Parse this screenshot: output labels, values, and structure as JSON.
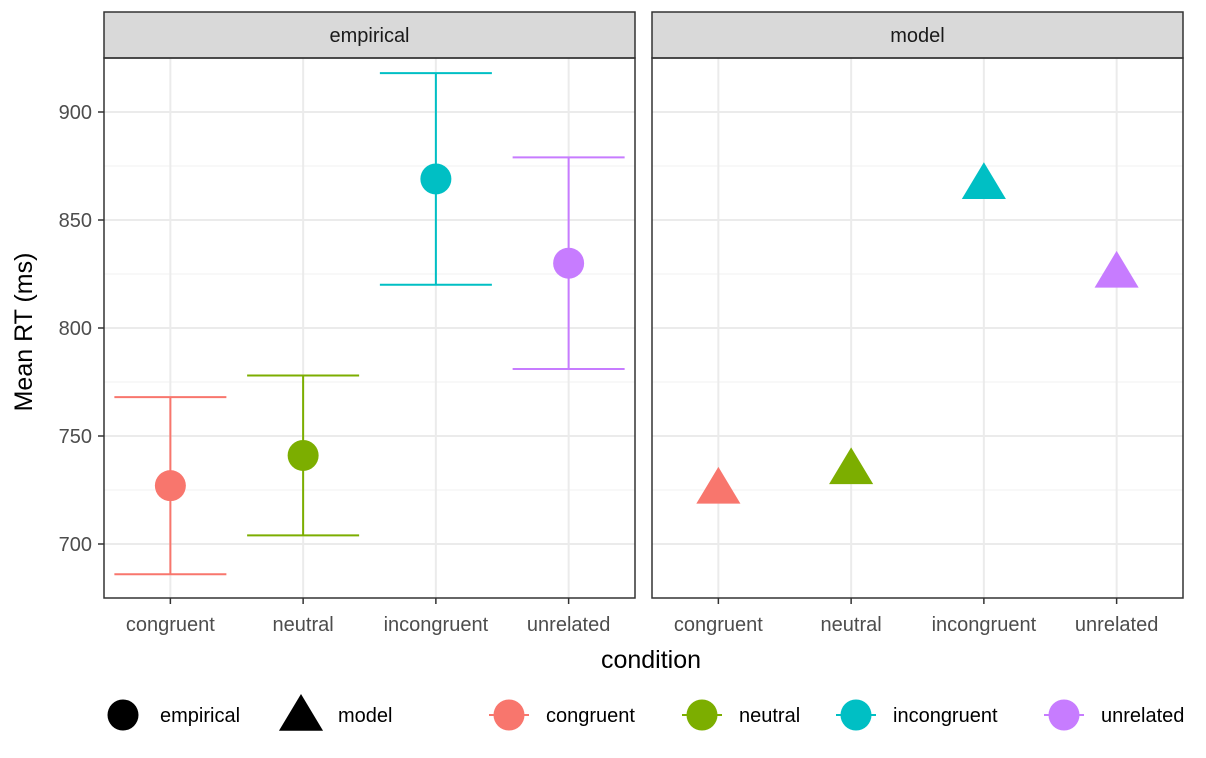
{
  "chart_data": {
    "type": "scatter",
    "xlabel": "condition",
    "ylabel": "Mean RT (ms)",
    "categories": [
      "congruent",
      "neutral",
      "incongruent",
      "unrelated"
    ],
    "ylim": [
      675,
      925
    ],
    "yticks": [
      700,
      750,
      800,
      850,
      900
    ],
    "grid": true,
    "colors": {
      "congruent": "#F8766D",
      "neutral": "#7CAE00",
      "incongruent": "#00BFC4",
      "unrelated": "#C77CFF"
    },
    "panels": [
      {
        "title": "empirical",
        "marker": "circle",
        "points": [
          {
            "category": "congruent",
            "mean": 727,
            "lower": 686,
            "upper": 768
          },
          {
            "category": "neutral",
            "mean": 741,
            "lower": 704,
            "upper": 778
          },
          {
            "category": "incongruent",
            "mean": 869,
            "lower": 820,
            "upper": 918
          },
          {
            "category": "unrelated",
            "mean": 830,
            "lower": 781,
            "upper": 879
          }
        ]
      },
      {
        "title": "model",
        "marker": "triangle",
        "points": [
          {
            "category": "congruent",
            "mean": 726
          },
          {
            "category": "neutral",
            "mean": 735
          },
          {
            "category": "incongruent",
            "mean": 867
          },
          {
            "category": "unrelated",
            "mean": 826
          }
        ]
      }
    ],
    "legend": {
      "placement": "bottom",
      "shape_entries": [
        {
          "label": "empirical",
          "marker": "circle"
        },
        {
          "label": "model",
          "marker": "triangle"
        }
      ],
      "color_entries": [
        {
          "label": "congruent"
        },
        {
          "label": "neutral"
        },
        {
          "label": "incongruent"
        },
        {
          "label": "unrelated"
        }
      ]
    }
  }
}
